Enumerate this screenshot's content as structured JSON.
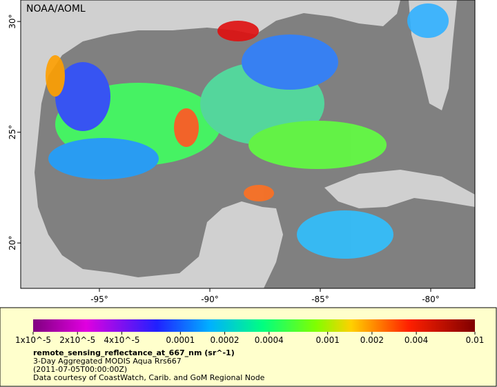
{
  "map": {
    "credit": "NOAA/AOML",
    "xlim": [
      -98.5625,
      -78
    ],
    "ylim": [
      17.95,
      30.97
    ],
    "xticks": [
      {
        "value": -95,
        "label": "-95°"
      },
      {
        "value": -90,
        "label": "-90°"
      },
      {
        "value": -85,
        "label": "-85°"
      },
      {
        "value": -80,
        "label": "-80°"
      }
    ],
    "yticks": [
      {
        "value": 20,
        "label": "20°"
      },
      {
        "value": 25,
        "label": "25°"
      },
      {
        "value": 30,
        "label": "30°"
      }
    ]
  },
  "colorbar": {
    "scale": "log",
    "lim": [
      1e-05,
      0.01
    ],
    "ticks": [
      {
        "value": 1e-05,
        "label": "1x10^-5"
      },
      {
        "value": 2e-05,
        "label": "2x10^-5"
      },
      {
        "value": 4e-05,
        "label": "4x10^-5"
      },
      0.0001,
      0.0002,
      0.0004,
      0.001,
      0.002,
      0.004,
      0.01
    ]
  },
  "caption": {
    "variable": "remote_sensing_reflectance_at_667_nm (sr^-1)",
    "product": "3-Day Aggregated MODIS Aqua Rrs667",
    "time": "(2011-07-05T00:00:00Z)",
    "courtesy": "Data courtesy of CoastWatch, Carib. and GoM Regional Node"
  }
}
